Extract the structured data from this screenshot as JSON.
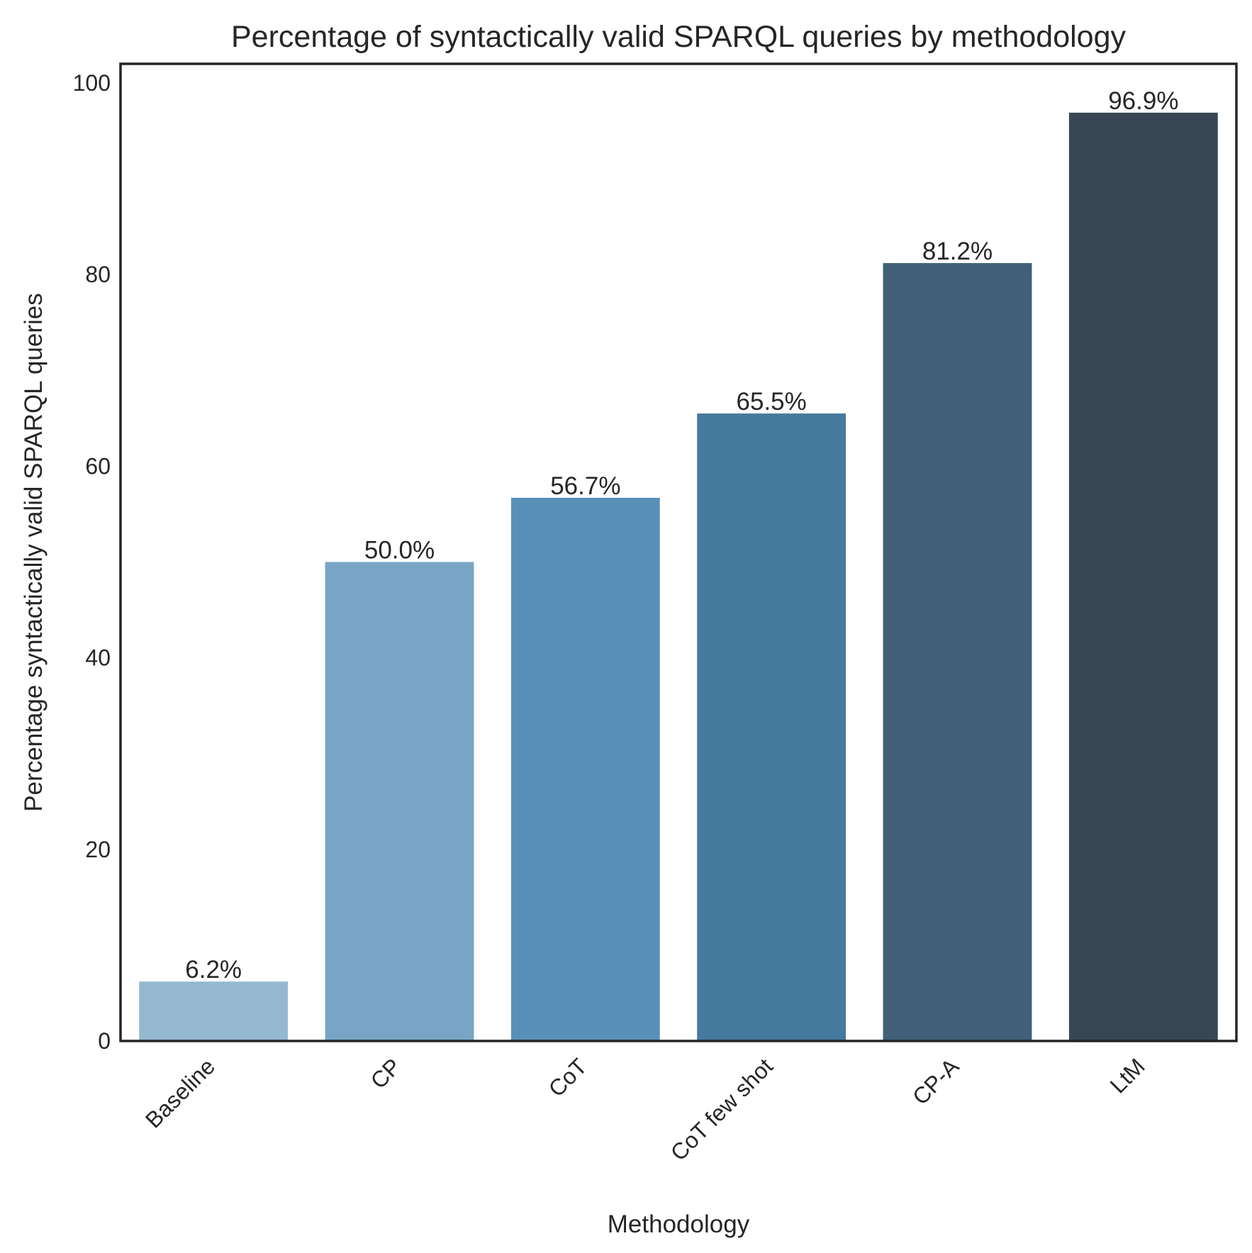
{
  "chart_data": {
    "type": "bar",
    "title": "Percentage of syntactically valid SPARQL queries by methodology",
    "xlabel": "Methodology",
    "ylabel": "Percentage syntactically valid SPARQL queries",
    "categories": [
      "Baseline",
      "CP",
      "CoT",
      "CoT few shot",
      "CP-A",
      "LtM"
    ],
    "values": [
      6.2,
      50.0,
      56.7,
      65.5,
      81.2,
      96.9
    ],
    "value_labels": [
      "6.2%",
      "50.0%",
      "56.7%",
      "65.5%",
      "81.2%",
      "96.9%"
    ],
    "bar_colors": [
      "#95b8d1",
      "#78a5c6",
      "#5990b8",
      "#46799e",
      "#3f6078",
      "#384753"
    ],
    "ylim": [
      0,
      102
    ],
    "yticks": [
      0,
      20,
      40,
      60,
      80,
      100
    ],
    "ytick_labels": [
      "0",
      "20",
      "40",
      "60",
      "80",
      "100"
    ],
    "grid": false,
    "legend": "none"
  }
}
